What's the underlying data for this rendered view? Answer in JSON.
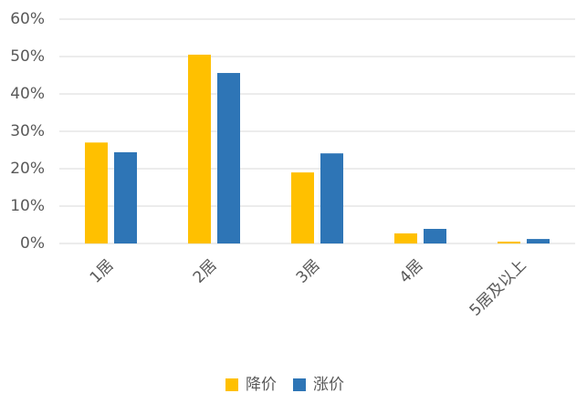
{
  "chart_data": {
    "type": "bar",
    "categories": [
      "1居",
      "2居",
      "3居",
      "4居",
      "5居及以上"
    ],
    "series": [
      {
        "name": "降价",
        "color": "#ffc000",
        "values": [
          27,
          50.5,
          19,
          2.7,
          0.5
        ]
      },
      {
        "name": "涨价",
        "color": "#2e75b6",
        "values": [
          24.4,
          45.6,
          24.1,
          3.9,
          1.2
        ]
      }
    ],
    "ylim": [
      0,
      60
    ],
    "yticks": [
      {
        "value": 0,
        "label": "0%"
      },
      {
        "value": 10,
        "label": "10%"
      },
      {
        "value": 20,
        "label": "20%"
      },
      {
        "value": 30,
        "label": "30%"
      },
      {
        "value": 40,
        "label": "40%"
      },
      {
        "value": 50,
        "label": "50%"
      },
      {
        "value": 60,
        "label": "60%"
      }
    ],
    "grid": true,
    "legend": "bottom"
  }
}
